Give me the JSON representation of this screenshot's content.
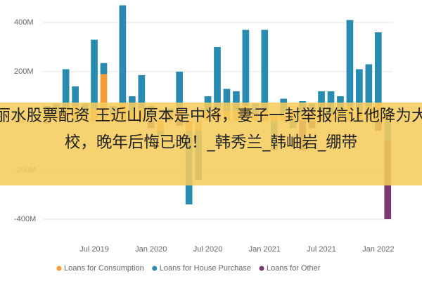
{
  "chart_data": {
    "type": "stacked-bar",
    "categories": [
      null,
      null,
      null,
      null,
      null,
      "Jul 2019",
      null,
      null,
      null,
      null,
      null,
      "Jan 2020",
      null,
      null,
      null,
      null,
      null,
      "Jul 2020",
      null,
      null,
      null,
      null,
      null,
      "Jan 2021",
      null,
      null,
      null,
      null,
      null,
      "Jul 2021",
      null,
      null,
      null,
      null,
      null,
      "Jan 2022",
      null
    ],
    "series": [
      {
        "name": "Loans for Consumption",
        "color": "#f39c38",
        "values": [
          40,
          30,
          40,
          60,
          30,
          50,
          190,
          30,
          70,
          40,
          50,
          20,
          -40,
          30,
          40,
          -40,
          -40,
          40,
          50,
          40,
          40,
          60,
          30,
          50,
          20,
          30,
          40,
          30,
          40,
          40,
          30,
          40,
          60,
          40,
          60,
          70,
          30
        ]
      },
      {
        "name": "Loans for House Purchase",
        "color": "#2a8bb0",
        "values": [
          20,
          40,
          170,
          80,
          40,
          280,
          45,
          30,
          400,
          60,
          136,
          40,
          -20,
          20,
          160,
          -300,
          -200,
          60,
          250,
          90,
          80,
          310,
          40,
          320,
          -120,
          60,
          -30,
          50,
          30,
          80,
          90,
          60,
          350,
          170,
          170,
          290,
          -80
        ]
      },
      {
        "name": "Loans for Other",
        "color": "#7a3b6e",
        "values": [
          -10,
          0,
          0,
          0,
          0,
          0,
          0,
          0,
          0,
          0,
          0,
          -30,
          0,
          0,
          -20,
          0,
          0,
          0,
          0,
          0,
          0,
          0,
          0,
          0,
          0,
          0,
          0,
          -120,
          -30,
          0,
          0,
          0,
          0,
          0,
          0,
          -40,
          -320
        ]
      }
    ],
    "ylim": [
      -460,
      480
    ],
    "yticks": [
      {
        "value": -400,
        "label": "-400M"
      },
      {
        "value": -200,
        "label": "-200M"
      },
      {
        "value": 0,
        "label": "0M"
      },
      {
        "value": 200,
        "label": "200M"
      },
      {
        "value": 400,
        "label": "400M"
      }
    ],
    "grid": true
  },
  "banner": {
    "text": "丽水股票配资 王近山原本是中将，妻子一封举报信让他降为大校，晚年后悔已晚！_韩秀兰_韩岫岩_绷带"
  }
}
